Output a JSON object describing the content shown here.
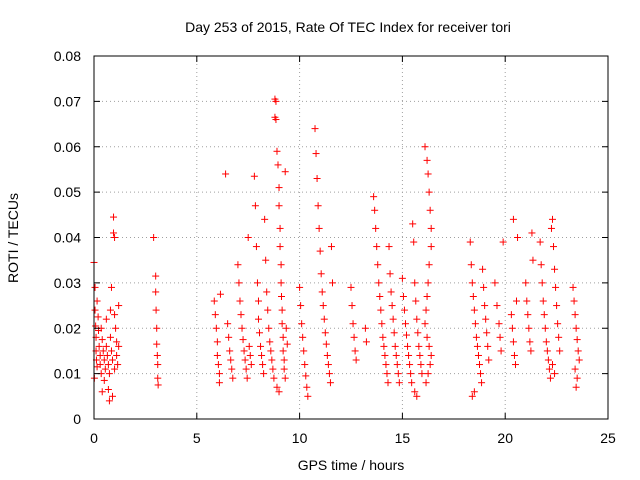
{
  "chart_data": {
    "type": "scatter",
    "title": "Day 253 of 2015, Rate Of TEC Index for receiver tori",
    "xlabel": "GPS time / hours",
    "ylabel": "ROTI / TECUs",
    "xlim": [
      0,
      25
    ],
    "ylim": [
      0,
      0.08
    ],
    "x_ticks": [
      0,
      5,
      10,
      15,
      20,
      25
    ],
    "y_ticks": [
      0,
      0.01,
      0.02,
      0.03,
      0.04,
      0.05,
      0.06,
      0.07,
      0.08
    ],
    "x_tick_labels": [
      "0",
      "5",
      "10",
      "15",
      "20",
      "25"
    ],
    "y_tick_labels": [
      "0",
      "0.01",
      "0.02",
      "0.03",
      "0.04",
      "0.05",
      "0.06",
      "0.07",
      "0.08"
    ],
    "grid": true,
    "marker": "+",
    "marker_color": "#ff0000",
    "points": [
      [
        0.0,
        0.0345
      ],
      [
        0.05,
        0.029
      ],
      [
        0.05,
        0.024
      ],
      [
        0.08,
        0.0205
      ],
      [
        0.1,
        0.018
      ],
      [
        0.1,
        0.015
      ],
      [
        0.12,
        0.013
      ],
      [
        0.15,
        0.0115
      ],
      [
        0.15,
        0.026
      ],
      [
        0.2,
        0.0225
      ],
      [
        0.22,
        0.0195
      ],
      [
        0.25,
        0.016
      ],
      [
        0.3,
        0.014
      ],
      [
        0.3,
        0.012
      ],
      [
        0.35,
        0.01
      ],
      [
        0.35,
        0.02
      ],
      [
        0.4,
        0.0175
      ],
      [
        0.45,
        0.015
      ],
      [
        0.5,
        0.013
      ],
      [
        0.5,
        0.0085
      ],
      [
        0.55,
        0.011
      ],
      [
        0.6,
        0.022
      ],
      [
        0.6,
        0.016
      ],
      [
        0.65,
        0.014
      ],
      [
        0.7,
        0.012
      ],
      [
        0.7,
        0.0065
      ],
      [
        0.75,
        0.01
      ],
      [
        0.8,
        0.024
      ],
      [
        0.8,
        0.018
      ],
      [
        0.85,
        0.029
      ],
      [
        0.85,
        0.015
      ],
      [
        0.9,
        0.013
      ],
      [
        0.9,
        0.005
      ],
      [
        0.95,
        0.0445
      ],
      [
        0.95,
        0.041
      ],
      [
        1.0,
        0.04
      ],
      [
        1.0,
        0.023
      ],
      [
        1.0,
        0.011
      ],
      [
        1.05,
        0.02
      ],
      [
        1.1,
        0.017
      ],
      [
        1.1,
        0.014
      ],
      [
        1.15,
        0.012
      ],
      [
        1.2,
        0.025
      ],
      [
        1.2,
        0.016
      ],
      [
        0.02,
        0.009
      ],
      [
        0.4,
        0.006
      ],
      [
        0.75,
        0.004
      ],
      [
        2.9,
        0.04
      ],
      [
        3.0,
        0.0315
      ],
      [
        3.0,
        0.028
      ],
      [
        3.02,
        0.024
      ],
      [
        3.05,
        0.02
      ],
      [
        3.05,
        0.0165
      ],
      [
        3.08,
        0.014
      ],
      [
        3.1,
        0.012
      ],
      [
        3.1,
        0.009
      ],
      [
        3.12,
        0.0075
      ],
      [
        5.85,
        0.026
      ],
      [
        5.9,
        0.023
      ],
      [
        5.95,
        0.02
      ],
      [
        6.0,
        0.017
      ],
      [
        6.0,
        0.014
      ],
      [
        6.05,
        0.012
      ],
      [
        6.1,
        0.01
      ],
      [
        6.1,
        0.008
      ],
      [
        6.15,
        0.0275
      ],
      [
        6.4,
        0.054
      ],
      [
        6.5,
        0.021
      ],
      [
        6.55,
        0.018
      ],
      [
        6.6,
        0.015
      ],
      [
        6.65,
        0.013
      ],
      [
        6.7,
        0.011
      ],
      [
        6.75,
        0.009
      ],
      [
        7.0,
        0.034
      ],
      [
        7.05,
        0.03
      ],
      [
        7.1,
        0.026
      ],
      [
        7.15,
        0.023
      ],
      [
        7.2,
        0.02
      ],
      [
        7.25,
        0.0175
      ],
      [
        7.3,
        0.015
      ],
      [
        7.35,
        0.013
      ],
      [
        7.4,
        0.011
      ],
      [
        7.45,
        0.009
      ],
      [
        7.5,
        0.04
      ],
      [
        7.55,
        0.016
      ],
      [
        7.6,
        0.014
      ],
      [
        7.65,
        0.012
      ],
      [
        7.8,
        0.0535
      ],
      [
        7.85,
        0.047
      ],
      [
        7.9,
        0.038
      ],
      [
        7.95,
        0.03
      ],
      [
        8.0,
        0.026
      ],
      [
        8.0,
        0.022
      ],
      [
        8.05,
        0.019
      ],
      [
        8.1,
        0.016
      ],
      [
        8.15,
        0.014
      ],
      [
        8.2,
        0.012
      ],
      [
        8.25,
        0.01
      ],
      [
        8.3,
        0.044
      ],
      [
        8.35,
        0.035
      ],
      [
        8.4,
        0.028
      ],
      [
        8.45,
        0.024
      ],
      [
        8.5,
        0.02
      ],
      [
        8.55,
        0.017
      ],
      [
        8.6,
        0.015
      ],
      [
        8.65,
        0.013
      ],
      [
        8.7,
        0.011
      ],
      [
        8.75,
        0.009
      ],
      [
        8.8,
        0.0705
      ],
      [
        8.85,
        0.07
      ],
      [
        8.8,
        0.0665
      ],
      [
        8.85,
        0.066
      ],
      [
        8.9,
        0.059
      ],
      [
        8.95,
        0.056
      ],
      [
        9.0,
        0.051
      ],
      [
        9.0,
        0.047
      ],
      [
        9.05,
        0.042
      ],
      [
        9.05,
        0.038
      ],
      [
        9.1,
        0.034
      ],
      [
        9.1,
        0.03
      ],
      [
        9.12,
        0.027
      ],
      [
        9.15,
        0.024
      ],
      [
        9.15,
        0.021
      ],
      [
        9.2,
        0.018
      ],
      [
        9.2,
        0.015
      ],
      [
        9.25,
        0.013
      ],
      [
        9.25,
        0.011
      ],
      [
        9.3,
        0.009
      ],
      [
        9.3,
        0.0545
      ],
      [
        8.9,
        0.007
      ],
      [
        9.0,
        0.006
      ],
      [
        9.35,
        0.02
      ],
      [
        9.4,
        0.0165
      ],
      [
        10.0,
        0.029
      ],
      [
        10.05,
        0.025
      ],
      [
        10.1,
        0.021
      ],
      [
        10.15,
        0.018
      ],
      [
        10.2,
        0.015
      ],
      [
        10.25,
        0.012
      ],
      [
        10.3,
        0.0095
      ],
      [
        10.35,
        0.007
      ],
      [
        10.4,
        0.005
      ],
      [
        10.75,
        0.064
      ],
      [
        10.8,
        0.0585
      ],
      [
        10.85,
        0.053
      ],
      [
        10.9,
        0.047
      ],
      [
        10.95,
        0.042
      ],
      [
        11.0,
        0.037
      ],
      [
        11.05,
        0.032
      ],
      [
        11.1,
        0.028
      ],
      [
        11.15,
        0.025
      ],
      [
        11.2,
        0.022
      ],
      [
        11.25,
        0.019
      ],
      [
        11.3,
        0.0165
      ],
      [
        11.35,
        0.014
      ],
      [
        11.4,
        0.012
      ],
      [
        11.45,
        0.01
      ],
      [
        11.5,
        0.008
      ],
      [
        11.55,
        0.038
      ],
      [
        11.6,
        0.03
      ],
      [
        12.5,
        0.029
      ],
      [
        12.55,
        0.025
      ],
      [
        12.6,
        0.021
      ],
      [
        12.65,
        0.018
      ],
      [
        12.7,
        0.015
      ],
      [
        12.75,
        0.013
      ],
      [
        13.2,
        0.02
      ],
      [
        13.25,
        0.017
      ],
      [
        13.6,
        0.049
      ],
      [
        13.65,
        0.046
      ],
      [
        13.7,
        0.042
      ],
      [
        13.75,
        0.038
      ],
      [
        13.8,
        0.034
      ],
      [
        13.85,
        0.03
      ],
      [
        13.9,
        0.027
      ],
      [
        13.95,
        0.024
      ],
      [
        14.0,
        0.021
      ],
      [
        14.05,
        0.018
      ],
      [
        14.1,
        0.016
      ],
      [
        14.15,
        0.014
      ],
      [
        14.2,
        0.012
      ],
      [
        14.25,
        0.01
      ],
      [
        14.3,
        0.008
      ],
      [
        14.35,
        0.038
      ],
      [
        14.4,
        0.032
      ],
      [
        14.45,
        0.028
      ],
      [
        14.5,
        0.025
      ],
      [
        14.55,
        0.022
      ],
      [
        14.6,
        0.019
      ],
      [
        14.65,
        0.016
      ],
      [
        14.7,
        0.014
      ],
      [
        14.75,
        0.012
      ],
      [
        14.8,
        0.01
      ],
      [
        14.85,
        0.008
      ],
      [
        15.0,
        0.031
      ],
      [
        15.05,
        0.027
      ],
      [
        15.1,
        0.024
      ],
      [
        15.15,
        0.021
      ],
      [
        15.2,
        0.0185
      ],
      [
        15.25,
        0.016
      ],
      [
        15.3,
        0.014
      ],
      [
        15.35,
        0.012
      ],
      [
        15.4,
        0.01
      ],
      [
        15.45,
        0.008
      ],
      [
        15.5,
        0.043
      ],
      [
        15.55,
        0.039
      ],
      [
        15.6,
        0.03
      ],
      [
        15.65,
        0.026
      ],
      [
        15.7,
        0.022
      ],
      [
        15.75,
        0.019
      ],
      [
        15.8,
        0.016
      ],
      [
        15.85,
        0.014
      ],
      [
        15.9,
        0.012
      ],
      [
        15.95,
        0.01
      ],
      [
        15.6,
        0.006
      ],
      [
        15.7,
        0.005
      ],
      [
        16.1,
        0.06
      ],
      [
        16.2,
        0.057
      ],
      [
        16.25,
        0.054
      ],
      [
        16.3,
        0.05
      ],
      [
        16.35,
        0.046
      ],
      [
        16.4,
        0.042
      ],
      [
        16.4,
        0.038
      ],
      [
        16.3,
        0.034
      ],
      [
        16.25,
        0.03
      ],
      [
        16.2,
        0.027
      ],
      [
        16.15,
        0.024
      ],
      [
        16.1,
        0.021
      ],
      [
        16.2,
        0.018
      ],
      [
        16.3,
        0.016
      ],
      [
        16.4,
        0.014
      ],
      [
        16.35,
        0.012
      ],
      [
        16.25,
        0.01
      ],
      [
        16.15,
        0.008
      ],
      [
        18.3,
        0.039
      ],
      [
        18.35,
        0.034
      ],
      [
        18.4,
        0.03
      ],
      [
        18.45,
        0.027
      ],
      [
        18.5,
        0.024
      ],
      [
        18.55,
        0.021
      ],
      [
        18.6,
        0.018
      ],
      [
        18.65,
        0.016
      ],
      [
        18.7,
        0.014
      ],
      [
        18.75,
        0.012
      ],
      [
        18.8,
        0.01
      ],
      [
        18.85,
        0.008
      ],
      [
        18.9,
        0.033
      ],
      [
        18.95,
        0.029
      ],
      [
        19.0,
        0.025
      ],
      [
        19.05,
        0.022
      ],
      [
        19.1,
        0.019
      ],
      [
        19.15,
        0.016
      ],
      [
        19.2,
        0.013
      ],
      [
        18.4,
        0.005
      ],
      [
        18.5,
        0.006
      ],
      [
        19.5,
        0.03
      ],
      [
        19.6,
        0.025
      ],
      [
        19.7,
        0.021
      ],
      [
        19.75,
        0.018
      ],
      [
        19.8,
        0.015
      ],
      [
        19.9,
        0.039
      ],
      [
        20.3,
        0.023
      ],
      [
        20.35,
        0.02
      ],
      [
        20.4,
        0.017
      ],
      [
        20.45,
        0.014
      ],
      [
        20.5,
        0.012
      ],
      [
        20.55,
        0.026
      ],
      [
        20.4,
        0.044
      ],
      [
        20.6,
        0.04
      ],
      [
        21.0,
        0.03
      ],
      [
        21.05,
        0.026
      ],
      [
        21.1,
        0.023
      ],
      [
        21.15,
        0.02
      ],
      [
        21.2,
        0.017
      ],
      [
        21.25,
        0.015
      ],
      [
        21.3,
        0.041
      ],
      [
        21.35,
        0.035
      ],
      [
        21.7,
        0.039
      ],
      [
        21.75,
        0.034
      ],
      [
        21.8,
        0.03
      ],
      [
        21.85,
        0.026
      ],
      [
        21.9,
        0.023
      ],
      [
        21.95,
        0.02
      ],
      [
        22.0,
        0.017
      ],
      [
        22.05,
        0.015
      ],
      [
        22.1,
        0.013
      ],
      [
        22.15,
        0.011
      ],
      [
        22.2,
        0.009
      ],
      [
        22.25,
        0.042
      ],
      [
        22.3,
        0.044
      ],
      [
        22.35,
        0.038
      ],
      [
        22.4,
        0.033
      ],
      [
        22.45,
        0.029
      ],
      [
        22.5,
        0.025
      ],
      [
        22.55,
        0.021
      ],
      [
        22.6,
        0.018
      ],
      [
        22.65,
        0.015
      ],
      [
        22.3,
        0.012
      ],
      [
        22.4,
        0.01
      ],
      [
        23.3,
        0.029
      ],
      [
        23.35,
        0.026
      ],
      [
        23.4,
        0.023
      ],
      [
        23.45,
        0.02
      ],
      [
        23.5,
        0.0175
      ],
      [
        23.55,
        0.015
      ],
      [
        23.6,
        0.013
      ],
      [
        23.4,
        0.011
      ],
      [
        23.5,
        0.009
      ],
      [
        23.45,
        0.007
      ]
    ]
  }
}
